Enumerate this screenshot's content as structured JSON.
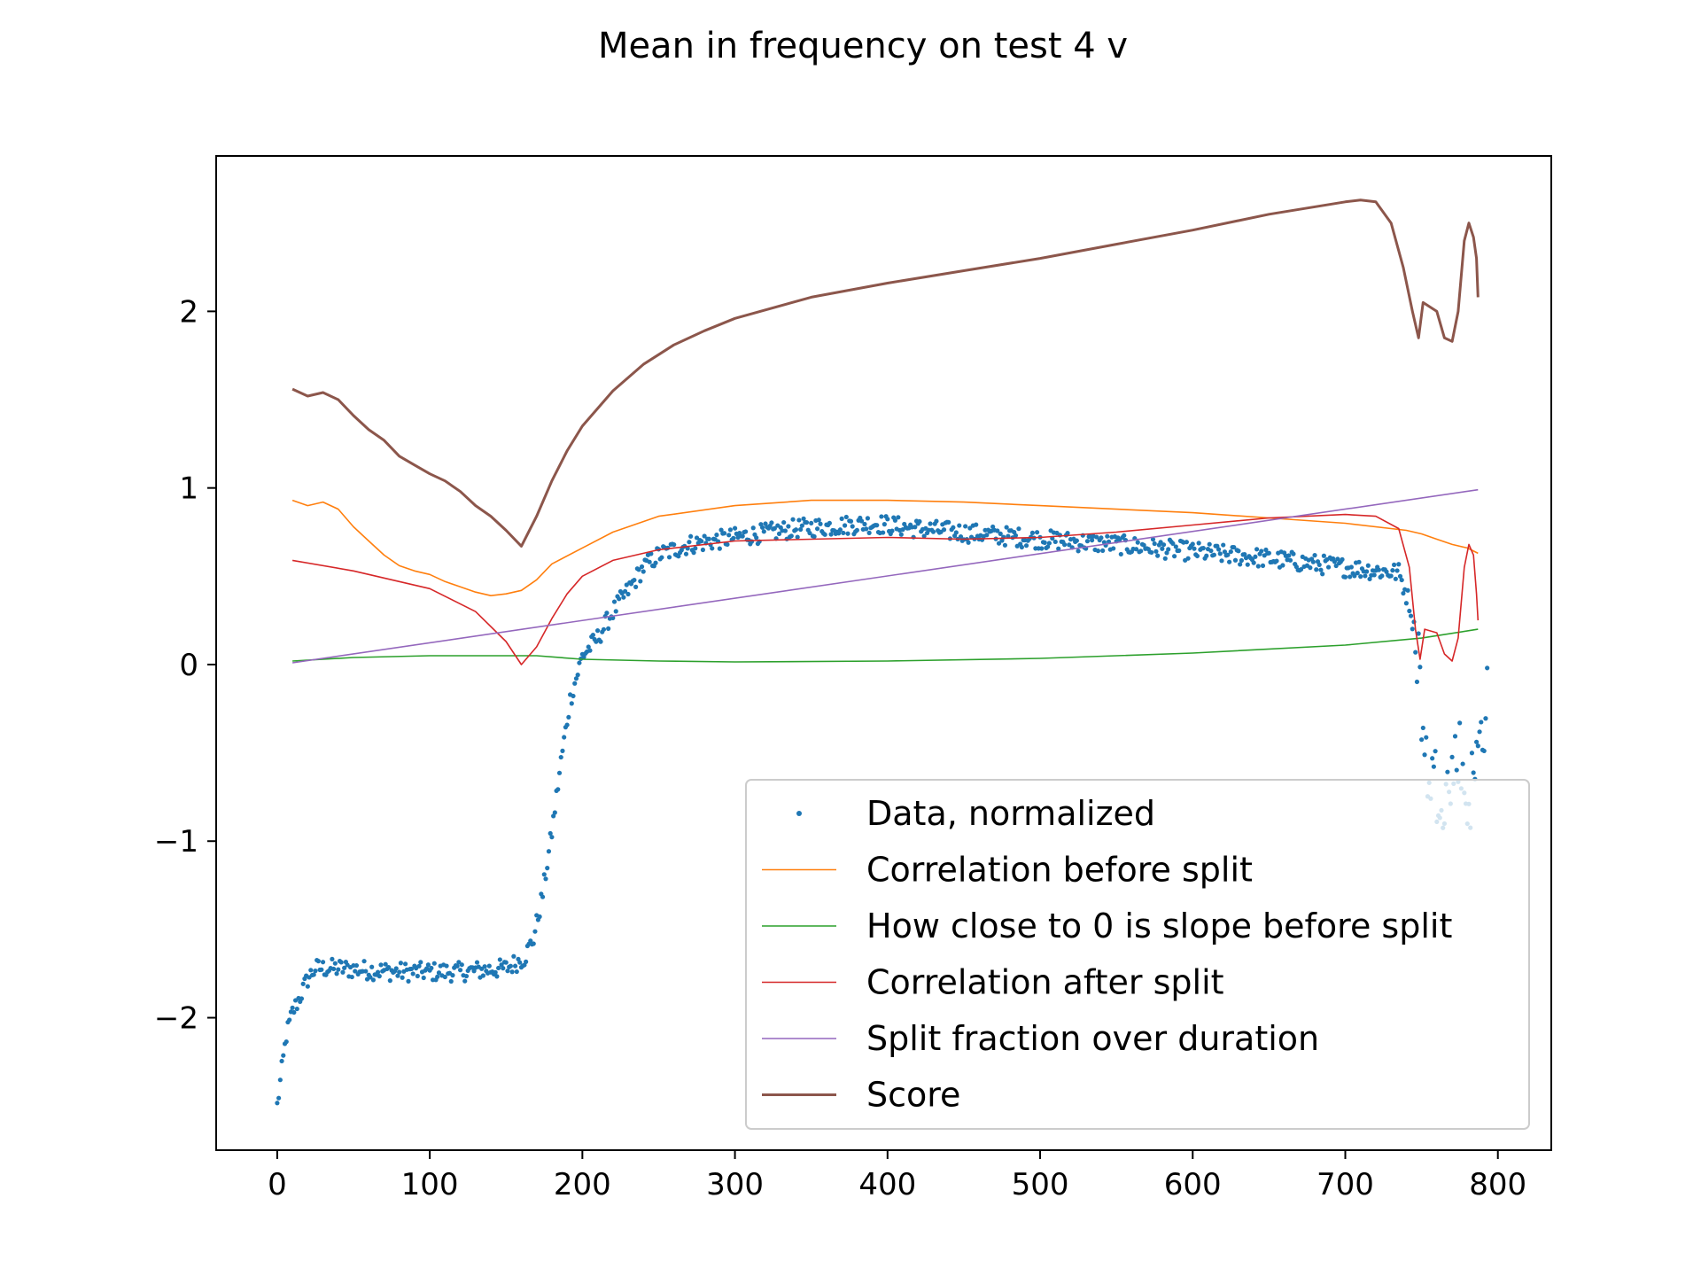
{
  "chart_data": {
    "type": "line",
    "title": "Mean in frequency on test 4 v",
    "xlabel": "",
    "ylabel": "",
    "xlim": [
      -40,
      835
    ],
    "ylim": [
      -2.75,
      2.88
    ],
    "x_ticks": [
      0,
      100,
      200,
      300,
      400,
      500,
      600,
      700,
      800
    ],
    "x_tick_labels": [
      "0",
      "100",
      "200",
      "300",
      "400",
      "500",
      "600",
      "700",
      "800"
    ],
    "y_ticks": [
      -2,
      -1,
      0,
      1,
      2
    ],
    "y_tick_labels": [
      "−2",
      "−1",
      "0",
      "1",
      "2"
    ],
    "grid": false,
    "legend_position": "lower-right",
    "legend": [
      {
        "label": "Data, normalized",
        "color": "#1f77b4",
        "marker": "dot"
      },
      {
        "label": "Correlation before split",
        "color": "#ff7f0e",
        "marker": "line"
      },
      {
        "label": "How close to 0 is slope before split",
        "color": "#2ca02c",
        "marker": "line"
      },
      {
        "label": "Correlation after split",
        "color": "#d62728",
        "marker": "line"
      },
      {
        "label": "Split fraction over duration",
        "color": "#9467bd",
        "marker": "line"
      },
      {
        "label": "Score",
        "color": "#8c564b",
        "marker": "line"
      }
    ],
    "scatter_series": {
      "name": "Data, normalized",
      "color": "#1f77b4",
      "x_range": [
        0,
        793
      ],
      "approx_profile": [
        [
          0,
          -2.5
        ],
        [
          3,
          -2.3
        ],
        [
          6,
          -2.1
        ],
        [
          10,
          -1.97
        ],
        [
          15,
          -1.88
        ],
        [
          20,
          -1.78
        ],
        [
          25,
          -1.72
        ],
        [
          40,
          -1.72
        ],
        [
          80,
          -1.74
        ],
        [
          120,
          -1.74
        ],
        [
          150,
          -1.72
        ],
        [
          162,
          -1.66
        ],
        [
          168,
          -1.55
        ],
        [
          174,
          -1.3
        ],
        [
          180,
          -0.95
        ],
        [
          186,
          -0.55
        ],
        [
          192,
          -0.2
        ],
        [
          200,
          0.05
        ],
        [
          210,
          0.15
        ],
        [
          220,
          0.3
        ],
        [
          230,
          0.42
        ],
        [
          240,
          0.55
        ],
        [
          250,
          0.62
        ],
        [
          270,
          0.68
        ],
        [
          300,
          0.72
        ],
        [
          340,
          0.77
        ],
        [
          390,
          0.8
        ],
        [
          420,
          0.77
        ],
        [
          460,
          0.74
        ],
        [
          500,
          0.71
        ],
        [
          550,
          0.68
        ],
        [
          600,
          0.64
        ],
        [
          650,
          0.6
        ],
        [
          700,
          0.55
        ],
        [
          735,
          0.52
        ],
        [
          742,
          0.35
        ],
        [
          748,
          0.05
        ],
        [
          752,
          -0.55
        ],
        [
          760,
          -0.68
        ],
        [
          768,
          -0.72
        ],
        [
          774,
          -0.45
        ],
        [
          780,
          -0.8
        ],
        [
          785,
          -0.6
        ],
        [
          790,
          -0.35
        ],
        [
          793,
          -0.15
        ]
      ]
    },
    "series": [
      {
        "name": "Correlation before split",
        "color": "#ff7f0e",
        "points": [
          [
            10,
            0.93
          ],
          [
            20,
            0.9
          ],
          [
            30,
            0.92
          ],
          [
            40,
            0.88
          ],
          [
            50,
            0.78
          ],
          [
            60,
            0.7
          ],
          [
            70,
            0.62
          ],
          [
            80,
            0.56
          ],
          [
            90,
            0.53
          ],
          [
            100,
            0.51
          ],
          [
            110,
            0.47
          ],
          [
            120,
            0.44
          ],
          [
            130,
            0.41
          ],
          [
            140,
            0.39
          ],
          [
            150,
            0.4
          ],
          [
            160,
            0.42
          ],
          [
            170,
            0.48
          ],
          [
            180,
            0.57
          ],
          [
            200,
            0.66
          ],
          [
            220,
            0.75
          ],
          [
            250,
            0.84
          ],
          [
            300,
            0.9
          ],
          [
            350,
            0.93
          ],
          [
            400,
            0.93
          ],
          [
            450,
            0.92
          ],
          [
            500,
            0.9
          ],
          [
            550,
            0.88
          ],
          [
            600,
            0.86
          ],
          [
            650,
            0.83
          ],
          [
            700,
            0.8
          ],
          [
            740,
            0.76
          ],
          [
            750,
            0.74
          ],
          [
            760,
            0.71
          ],
          [
            770,
            0.68
          ],
          [
            780,
            0.66
          ],
          [
            787,
            0.63
          ]
        ]
      },
      {
        "name": "How close to 0 is slope before split",
        "color": "#2ca02c",
        "points": [
          [
            10,
            0.02
          ],
          [
            50,
            0.04
          ],
          [
            100,
            0.05
          ],
          [
            150,
            0.05
          ],
          [
            170,
            0.05
          ],
          [
            200,
            0.03
          ],
          [
            250,
            0.02
          ],
          [
            300,
            0.015
          ],
          [
            400,
            0.02
          ],
          [
            500,
            0.035
          ],
          [
            600,
            0.065
          ],
          [
            700,
            0.11
          ],
          [
            750,
            0.15
          ],
          [
            787,
            0.2
          ]
        ]
      },
      {
        "name": "Correlation after split",
        "color": "#d62728",
        "points": [
          [
            10,
            0.59
          ],
          [
            50,
            0.53
          ],
          [
            100,
            0.43
          ],
          [
            130,
            0.3
          ],
          [
            150,
            0.13
          ],
          [
            160,
            0.0
          ],
          [
            170,
            0.1
          ],
          [
            180,
            0.26
          ],
          [
            190,
            0.4
          ],
          [
            200,
            0.5
          ],
          [
            220,
            0.59
          ],
          [
            250,
            0.65
          ],
          [
            300,
            0.7
          ],
          [
            350,
            0.71
          ],
          [
            400,
            0.72
          ],
          [
            450,
            0.71
          ],
          [
            500,
            0.72
          ],
          [
            550,
            0.75
          ],
          [
            600,
            0.79
          ],
          [
            650,
            0.83
          ],
          [
            700,
            0.85
          ],
          [
            720,
            0.84
          ],
          [
            735,
            0.77
          ],
          [
            742,
            0.55
          ],
          [
            746,
            0.2
          ],
          [
            749,
            0.03
          ],
          [
            752,
            0.2
          ],
          [
            760,
            0.18
          ],
          [
            765,
            0.06
          ],
          [
            770,
            0.02
          ],
          [
            774,
            0.15
          ],
          [
            778,
            0.55
          ],
          [
            781,
            0.68
          ],
          [
            784,
            0.62
          ],
          [
            786,
            0.4
          ],
          [
            787,
            0.25
          ]
        ]
      },
      {
        "name": "Split fraction over duration",
        "color": "#9467bd",
        "points": [
          [
            10,
            0.01
          ],
          [
            787,
            0.99
          ]
        ]
      },
      {
        "name": "Score",
        "color": "#8c564b",
        "points": [
          [
            10,
            1.56
          ],
          [
            20,
            1.52
          ],
          [
            30,
            1.54
          ],
          [
            40,
            1.5
          ],
          [
            50,
            1.41
          ],
          [
            60,
            1.33
          ],
          [
            70,
            1.27
          ],
          [
            80,
            1.18
          ],
          [
            90,
            1.13
          ],
          [
            100,
            1.08
          ],
          [
            110,
            1.04
          ],
          [
            120,
            0.98
          ],
          [
            130,
            0.9
          ],
          [
            140,
            0.84
          ],
          [
            150,
            0.76
          ],
          [
            160,
            0.67
          ],
          [
            170,
            0.84
          ],
          [
            180,
            1.04
          ],
          [
            190,
            1.21
          ],
          [
            200,
            1.35
          ],
          [
            220,
            1.55
          ],
          [
            240,
            1.7
          ],
          [
            260,
            1.81
          ],
          [
            280,
            1.89
          ],
          [
            300,
            1.96
          ],
          [
            350,
            2.08
          ],
          [
            400,
            2.16
          ],
          [
            450,
            2.23
          ],
          [
            500,
            2.3
          ],
          [
            550,
            2.38
          ],
          [
            600,
            2.46
          ],
          [
            650,
            2.55
          ],
          [
            700,
            2.62
          ],
          [
            710,
            2.63
          ],
          [
            720,
            2.62
          ],
          [
            730,
            2.5
          ],
          [
            738,
            2.25
          ],
          [
            744,
            2.0
          ],
          [
            748,
            1.85
          ],
          [
            751,
            2.05
          ],
          [
            760,
            2.0
          ],
          [
            765,
            1.85
          ],
          [
            770,
            1.83
          ],
          [
            774,
            2.0
          ],
          [
            778,
            2.4
          ],
          [
            781,
            2.5
          ],
          [
            784,
            2.42
          ],
          [
            786,
            2.3
          ],
          [
            787,
            2.08
          ]
        ]
      }
    ]
  }
}
